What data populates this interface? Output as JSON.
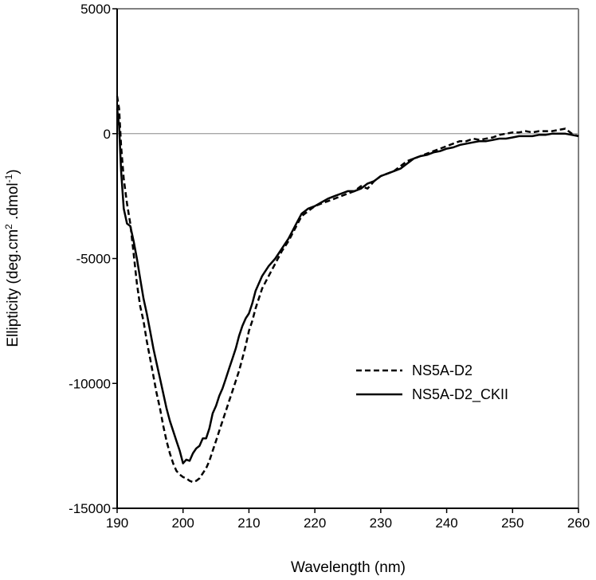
{
  "chart_data": {
    "type": "line",
    "title": "",
    "xlabel": "Wavelength (nm)",
    "ylabel": {
      "prefix": "Ellipticity (deg.cm",
      "sup1": "2",
      "middle": " .dmol",
      "sup2": "-1",
      "suffix": ")"
    },
    "xlim": [
      190,
      260
    ],
    "ylim": [
      -15000,
      5000
    ],
    "xticks": [
      "190",
      "200",
      "210",
      "220",
      "230",
      "240",
      "250",
      "260"
    ],
    "yticks": [
      "5000",
      "0",
      "-5000",
      "-10000",
      "-15000"
    ],
    "zero_line": true,
    "legend_position": "center-right",
    "series": [
      {
        "name": "NS5A-D2",
        "style": "dashed",
        "color": "#000000",
        "x": [
          190,
          190.3,
          190.6,
          191,
          191.5,
          192,
          192.5,
          193,
          193.5,
          194,
          194.5,
          195,
          195.5,
          196,
          196.5,
          197,
          197.5,
          198,
          198.5,
          199,
          199.5,
          200,
          200.5,
          201,
          201.5,
          202,
          202.5,
          203,
          203.5,
          204,
          204.5,
          205,
          205.5,
          206,
          206.5,
          207,
          207.5,
          208,
          208.5,
          209,
          209.5,
          210,
          210.5,
          211,
          212,
          213,
          214,
          215,
          216,
          217,
          218,
          219,
          220,
          221,
          222,
          223,
          224,
          225,
          226,
          227,
          228,
          229,
          230,
          231,
          232,
          233,
          234,
          235,
          236,
          237,
          238,
          239,
          240,
          241,
          242,
          243,
          244,
          245,
          246,
          247,
          248,
          249,
          250,
          251,
          252,
          253,
          254,
          255,
          256,
          257,
          258,
          259,
          260
        ],
        "y": [
          1500,
          1000,
          -500,
          -1800,
          -2800,
          -3600,
          -4800,
          -6000,
          -6900,
          -7500,
          -8300,
          -9000,
          -9700,
          -10400,
          -11000,
          -11700,
          -12300,
          -12800,
          -13200,
          -13500,
          -13650,
          -13750,
          -13800,
          -13900,
          -13950,
          -13900,
          -13800,
          -13600,
          -13400,
          -13100,
          -12700,
          -12300,
          -11900,
          -11500,
          -11100,
          -10700,
          -10300,
          -9900,
          -9500,
          -9000,
          -8500,
          -7900,
          -7500,
          -7000,
          -6200,
          -5700,
          -5200,
          -4700,
          -4300,
          -3800,
          -3300,
          -3100,
          -2900,
          -2800,
          -2700,
          -2600,
          -2500,
          -2400,
          -2300,
          -2100,
          -2200,
          -1900,
          -1700,
          -1600,
          -1500,
          -1300,
          -1100,
          -1000,
          -900,
          -800,
          -700,
          -600,
          -500,
          -400,
          -300,
          -300,
          -200,
          -250,
          -200,
          -150,
          -50,
          0,
          50,
          50,
          100,
          50,
          100,
          100,
          100,
          150,
          200,
          0,
          -100
        ],
        "legend_label": "NS5A-D2"
      },
      {
        "name": "NS5A-D2_CKII",
        "style": "solid",
        "color": "#000000",
        "x": [
          190,
          190.3,
          190.6,
          191,
          191.5,
          192,
          192.5,
          193,
          193.5,
          194,
          194.5,
          195,
          195.5,
          196,
          196.5,
          197,
          197.5,
          198,
          198.5,
          199,
          199.5,
          200,
          200.5,
          201,
          201.5,
          202,
          202.5,
          203,
          203.5,
          204,
          204.5,
          205,
          205.5,
          206,
          206.5,
          207,
          207.5,
          208,
          208.5,
          209,
          209.5,
          210,
          210.5,
          211,
          212,
          213,
          214,
          215,
          216,
          217,
          218,
          219,
          220,
          221,
          222,
          223,
          224,
          225,
          226,
          227,
          228,
          229,
          230,
          231,
          232,
          233,
          234,
          235,
          236,
          237,
          238,
          239,
          240,
          241,
          242,
          243,
          244,
          245,
          246,
          247,
          248,
          249,
          250,
          251,
          252,
          253,
          254,
          255,
          256,
          257,
          258,
          259,
          260
        ],
        "y": [
          1000,
          300,
          -1500,
          -3000,
          -3600,
          -3700,
          -4300,
          -5000,
          -5800,
          -6600,
          -7200,
          -7900,
          -8600,
          -9200,
          -9800,
          -10400,
          -11000,
          -11500,
          -11900,
          -12300,
          -12700,
          -13200,
          -13050,
          -13100,
          -12800,
          -12600,
          -12500,
          -12200,
          -12200,
          -11800,
          -11200,
          -10900,
          -10500,
          -10200,
          -9800,
          -9400,
          -9000,
          -8600,
          -8100,
          -7700,
          -7400,
          -7200,
          -6800,
          -6300,
          -5700,
          -5300,
          -5000,
          -4600,
          -4200,
          -3700,
          -3200,
          -3000,
          -2900,
          -2750,
          -2600,
          -2500,
          -2400,
          -2300,
          -2300,
          -2200,
          -2000,
          -1900,
          -1700,
          -1600,
          -1500,
          -1400,
          -1200,
          -1000,
          -900,
          -850,
          -750,
          -700,
          -600,
          -550,
          -450,
          -400,
          -350,
          -300,
          -300,
          -250,
          -200,
          -200,
          -150,
          -100,
          -100,
          -100,
          -50,
          -50,
          0,
          0,
          0,
          -50,
          -100
        ],
        "legend_label": "NS5A-D2_CKII"
      }
    ]
  }
}
